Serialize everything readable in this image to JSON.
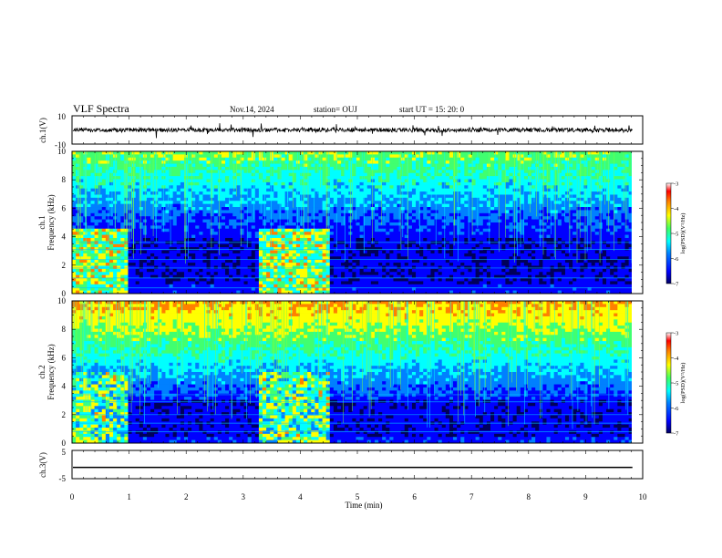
{
  "header": {
    "title": "VLF Spectra",
    "date": "Nov.14, 2024",
    "station": "station= OUJ",
    "start": "start  UT =   15: 20: 0"
  },
  "colors": {
    "colormap": [
      "#00007f",
      "#0000ff",
      "#0080ff",
      "#00ffff",
      "#40ff80",
      "#c0ff00",
      "#ffff00",
      "#ff8000",
      "#ff0000",
      "#ffffff"
    ],
    "waveform": "#000000"
  },
  "chart_data": [
    {
      "type": "line",
      "panel": "ch1-waveform",
      "ylabel": "ch.1(V)",
      "ylim": [
        -10,
        10
      ],
      "y_ticks": [
        "10",
        "-10"
      ],
      "x": [
        0,
        10
      ],
      "values_note_level": 0
    },
    {
      "type": "heatmap",
      "panel": "ch1-spectrogram",
      "ylabel": "ch.1\nFrequency (kHz)",
      "ylabel_line1": "ch.1",
      "ylabel_line2": "Frequency (kHz)",
      "ylim": [
        0,
        10
      ],
      "y_ticks": [
        "0",
        "2",
        "4",
        "6",
        "8",
        "10"
      ],
      "xlim": [
        0,
        10
      ],
      "x_extent_min": 9.82,
      "colorbar": {
        "label": "log(PSD)(V²/Hz)",
        "range": [
          -7,
          -3
        ],
        "ticks": [
          "-3",
          "-4",
          "-5",
          "-6",
          "-7"
        ]
      },
      "segments": [
        {
          "from": 0.0,
          "to": 1.0,
          "state": "active"
        },
        {
          "from": 1.0,
          "to": 3.3,
          "state": "quiet"
        },
        {
          "from": 3.3,
          "to": 4.5,
          "state": "active"
        },
        {
          "from": 4.5,
          "to": 9.82,
          "state": "quiet"
        }
      ]
    },
    {
      "type": "heatmap",
      "panel": "ch2-spectrogram",
      "ylabel_line1": "ch.2",
      "ylabel_line2": "Frequency (kHz)",
      "ylim": [
        0,
        10
      ],
      "y_ticks": [
        "0",
        "2",
        "4",
        "6",
        "8",
        "10"
      ],
      "xlim": [
        0,
        10
      ],
      "x_extent_min": 9.82,
      "colorbar": {
        "label": "log(PSD)(V²/Hz)",
        "range": [
          -7,
          -3
        ],
        "ticks": [
          "-3",
          "-4",
          "-5",
          "-6",
          "-7"
        ]
      },
      "segments": [
        {
          "from": 0.0,
          "to": 1.0,
          "state": "active"
        },
        {
          "from": 1.0,
          "to": 3.3,
          "state": "quiet"
        },
        {
          "from": 3.3,
          "to": 4.5,
          "state": "active"
        },
        {
          "from": 4.5,
          "to": 9.82,
          "state": "quiet"
        }
      ]
    },
    {
      "type": "line",
      "panel": "ch3-waveform",
      "ylabel": "ch.3(V)",
      "ylim": [
        -5,
        5
      ],
      "y_ticks": [
        "5",
        "-5"
      ],
      "x": [
        0,
        9.82
      ],
      "y": [
        -1,
        -1
      ]
    }
  ],
  "xaxis": {
    "label": "Time  (min)",
    "ticks": [
      "0",
      "1",
      "2",
      "3",
      "4",
      "5",
      "6",
      "7",
      "8",
      "9",
      "10"
    ],
    "range": [
      0,
      10
    ]
  }
}
